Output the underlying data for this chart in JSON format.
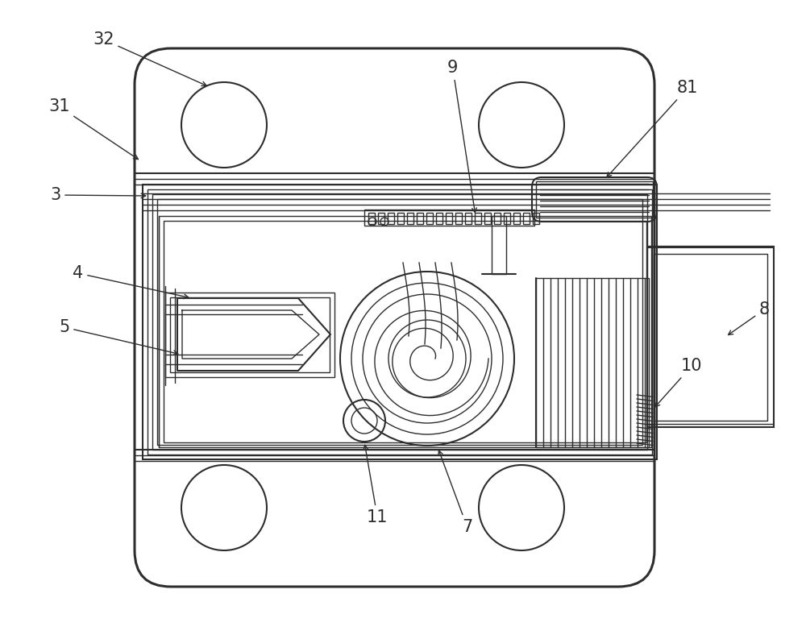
{
  "bg_color": "#ffffff",
  "lc": "#2d2d2d",
  "figsize": [
    10.0,
    7.83
  ],
  "dpi": 100,
  "label_fs": 15
}
